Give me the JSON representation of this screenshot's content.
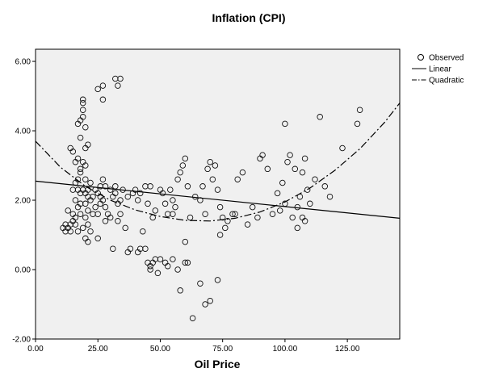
{
  "chart_data": {
    "type": "scatter",
    "title": "Inflation (CPI)",
    "xlabel": "Oil Price",
    "ylabel": "",
    "xlim": [
      0,
      146
    ],
    "ylim": [
      -2,
      6.35
    ],
    "xticks": [
      0,
      25,
      50,
      75,
      100,
      125
    ],
    "xtick_labels": [
      "0.00",
      "25.00",
      "50.00",
      "75.00",
      "100.00",
      "125.00"
    ],
    "yticks": [
      -2,
      0,
      2,
      4,
      6
    ],
    "ytick_labels": [
      "-2.00",
      "0.00",
      "2.00",
      "4.00",
      "6.00"
    ],
    "grid": false,
    "plot_background": "#f0f0f0",
    "legend": {
      "placement": "right",
      "entries": [
        {
          "label": "Observed",
          "marker": "open-circle"
        },
        {
          "label": "Linear",
          "line": "solid"
        },
        {
          "label": "Quadratic",
          "line": "dash-dot"
        }
      ]
    },
    "series": [
      {
        "name": "Observed",
        "kind": "scatter",
        "marker": "open-circle",
        "points": [
          [
            11,
            1.2
          ],
          [
            12,
            1.1
          ],
          [
            13,
            1.2
          ],
          [
            14,
            1.3
          ],
          [
            14,
            3.5
          ],
          [
            15,
            3.4
          ],
          [
            15,
            1.4
          ],
          [
            16,
            1.5
          ],
          [
            16,
            2.5
          ],
          [
            16,
            3.1
          ],
          [
            17,
            3.2
          ],
          [
            17,
            4.2
          ],
          [
            17,
            1.8
          ],
          [
            17,
            2.3
          ],
          [
            18,
            2.8
          ],
          [
            18,
            4.3
          ],
          [
            18,
            3.8
          ],
          [
            19,
            4.6
          ],
          [
            19,
            4.8
          ],
          [
            19,
            4.9
          ],
          [
            19,
            4.4
          ],
          [
            20,
            4.1
          ],
          [
            20,
            3.5
          ],
          [
            20,
            3.0
          ],
          [
            20,
            2.6
          ],
          [
            20,
            2.2
          ],
          [
            20,
            1.9
          ],
          [
            20,
            1.5
          ],
          [
            21,
            2.1
          ],
          [
            21,
            2.3
          ],
          [
            21,
            1.7
          ],
          [
            21,
            1.3
          ],
          [
            21,
            3.6
          ],
          [
            22,
            2.0
          ],
          [
            22,
            2.5
          ],
          [
            22,
            1.1
          ],
          [
            23,
            1.6
          ],
          [
            23,
            2.1
          ],
          [
            18,
            2.9
          ],
          [
            18,
            2.2
          ],
          [
            18,
            1.9
          ],
          [
            18,
            1.6
          ],
          [
            19,
            2.3
          ],
          [
            19,
            3.1
          ],
          [
            19,
            1.2
          ],
          [
            17,
            2.6
          ],
          [
            17,
            1.1
          ],
          [
            16,
            1.3
          ],
          [
            16,
            2.0
          ],
          [
            15,
            2.3
          ],
          [
            15,
            1.6
          ],
          [
            14,
            1.1
          ],
          [
            13,
            1.7
          ],
          [
            12,
            1.3
          ],
          [
            20,
            0.9
          ],
          [
            21,
            0.8
          ],
          [
            24,
            2.3
          ],
          [
            24,
            1.8
          ],
          [
            25,
            2.2
          ],
          [
            25,
            1.6
          ],
          [
            25,
            0.9
          ],
          [
            26,
            2.4
          ],
          [
            26,
            1.9
          ],
          [
            26,
            2.1
          ],
          [
            27,
            2.6
          ],
          [
            27,
            2.0
          ],
          [
            28,
            1.8
          ],
          [
            28,
            2.4
          ],
          [
            28,
            1.4
          ],
          [
            29,
            1.6
          ],
          [
            30,
            2.3
          ],
          [
            30,
            1.5
          ],
          [
            31,
            2.1
          ],
          [
            31,
            0.6
          ],
          [
            32,
            2.2
          ],
          [
            32,
            2.4
          ],
          [
            33,
            1.9
          ],
          [
            33,
            1.4
          ],
          [
            34,
            2.0
          ],
          [
            34,
            1.6
          ],
          [
            35,
            2.3
          ],
          [
            36,
            1.2
          ],
          [
            37,
            2.1
          ],
          [
            37,
            0.5
          ],
          [
            38,
            0.6
          ],
          [
            39,
            2.2
          ],
          [
            40,
            2.3
          ],
          [
            41,
            2.0
          ],
          [
            42,
            2.2
          ],
          [
            43,
            1.1
          ],
          [
            44,
            2.4
          ],
          [
            45,
            1.9
          ],
          [
            46,
            2.4
          ],
          [
            47,
            1.5
          ],
          [
            48,
            1.7
          ],
          [
            50,
            2.3
          ],
          [
            51,
            2.2
          ],
          [
            52,
            1.9
          ],
          [
            53,
            1.6
          ],
          [
            54,
            2.3
          ],
          [
            55,
            2.0
          ],
          [
            56,
            1.8
          ],
          [
            57,
            2.6
          ],
          [
            58,
            2.8
          ],
          [
            59,
            3.0
          ],
          [
            60,
            3.2
          ],
          [
            61,
            2.4
          ],
          [
            62,
            1.5
          ],
          [
            64,
            2.1
          ],
          [
            66,
            2.0
          ],
          [
            67,
            2.4
          ],
          [
            68,
            1.6
          ],
          [
            69,
            2.9
          ],
          [
            70,
            3.1
          ],
          [
            71,
            2.6
          ],
          [
            72,
            3.0
          ],
          [
            73,
            2.3
          ],
          [
            74,
            1.8
          ],
          [
            75,
            1.5
          ],
          [
            77,
            1.4
          ],
          [
            79,
            1.6
          ],
          [
            81,
            2.6
          ],
          [
            83,
            2.8
          ],
          [
            85,
            1.3
          ],
          [
            87,
            1.8
          ],
          [
            89,
            1.5
          ],
          [
            90,
            3.2
          ],
          [
            91,
            3.3
          ],
          [
            93,
            2.9
          ],
          [
            95,
            1.6
          ],
          [
            97,
            2.2
          ],
          [
            98,
            1.7
          ],
          [
            99,
            2.5
          ],
          [
            100,
            1.9
          ],
          [
            100,
            4.2
          ],
          [
            101,
            3.1
          ],
          [
            102,
            3.3
          ],
          [
            103,
            1.5
          ],
          [
            104,
            2.9
          ],
          [
            105,
            1.8
          ],
          [
            105,
            1.2
          ],
          [
            106,
            2.1
          ],
          [
            107,
            2.8
          ],
          [
            107,
            1.5
          ],
          [
            108,
            3.2
          ],
          [
            108,
            1.4
          ],
          [
            109,
            2.3
          ],
          [
            110,
            1.9
          ],
          [
            112,
            2.6
          ],
          [
            114,
            4.4
          ],
          [
            116,
            2.4
          ],
          [
            118,
            2.1
          ],
          [
            123,
            3.5
          ],
          [
            129,
            4.2
          ],
          [
            130,
            4.6
          ],
          [
            25,
            5.2
          ],
          [
            27,
            5.3
          ],
          [
            27,
            4.9
          ],
          [
            32,
            5.5
          ],
          [
            34,
            5.5
          ],
          [
            33,
            5.3
          ],
          [
            41,
            0.5
          ],
          [
            42,
            0.6
          ],
          [
            44,
            0.6
          ],
          [
            45,
            0.2
          ],
          [
            46,
            0.1
          ],
          [
            47,
            0.2
          ],
          [
            48,
            0.3
          ],
          [
            50,
            0.3
          ],
          [
            52,
            0.2
          ],
          [
            53,
            0.1
          ],
          [
            46,
            0.0
          ],
          [
            49,
            -0.1
          ],
          [
            55,
            0.3
          ],
          [
            57,
            0.0
          ],
          [
            58,
            -0.6
          ],
          [
            60,
            0.2
          ],
          [
            61,
            0.2
          ],
          [
            63,
            -1.4
          ],
          [
            66,
            -0.4
          ],
          [
            68,
            -1.0
          ],
          [
            70,
            -0.9
          ],
          [
            73,
            -0.3
          ],
          [
            74,
            1.0
          ],
          [
            76,
            1.2
          ],
          [
            80,
            1.6
          ],
          [
            60,
            0.8
          ],
          [
            55,
            1.6
          ]
        ]
      },
      {
        "name": "Linear",
        "kind": "line",
        "dash": "solid",
        "x": [
          0,
          146
        ],
        "y": [
          2.55,
          1.48
        ]
      },
      {
        "name": "Quadratic",
        "kind": "line",
        "dash": "dash-dot",
        "x": [
          0,
          10,
          20,
          30,
          40,
          50,
          60,
          70,
          80,
          90,
          100,
          110,
          120,
          130,
          140,
          146
        ],
        "y": [
          3.7,
          2.95,
          2.4,
          2.0,
          1.72,
          1.53,
          1.42,
          1.4,
          1.48,
          1.66,
          1.95,
          2.35,
          2.86,
          3.48,
          4.25,
          4.8
        ]
      }
    ]
  }
}
